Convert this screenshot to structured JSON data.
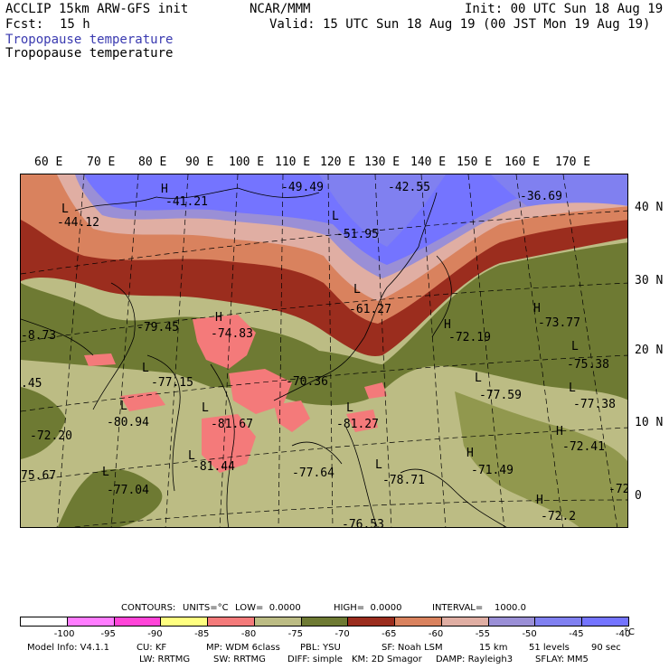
{
  "header": {
    "model": "ACCLIP 15km ARW-GFS init",
    "org": "NCAR/MMM",
    "init": "Init: 00 UTC Sun 18 Aug 19",
    "fcst_label": "Fcst:",
    "fcst_value": "15 h",
    "valid": "Valid: 15 UTC Sun 18 Aug 19 (00 JST Mon 19 Aug 19)",
    "field1": "Tropopause temperature",
    "field2": "Tropopause temperature"
  },
  "map": {
    "lon_labels": [
      "60 E",
      "70 E",
      "80 E",
      "90 E",
      "100 E",
      "110 E",
      "120 E",
      "130 E",
      "140 E",
      "150 E",
      "160 E",
      "170 E"
    ],
    "lat_labels": [
      "40 N",
      "30 N",
      "20 N",
      "10 N",
      "0"
    ],
    "extrema": [
      {
        "mark": "H",
        "value": "-41.21"
      },
      {
        "mark": "L",
        "value": "-44.12"
      },
      {
        "mark": "",
        "value": "-49.49"
      },
      {
        "mark": "",
        "value": "-42.55"
      },
      {
        "mark": "",
        "value": "-36.69"
      },
      {
        "mark": "L",
        "value": "-51.95"
      },
      {
        "mark": "L",
        "value": "-61.27"
      },
      {
        "mark": "H",
        "value": "-73.77"
      },
      {
        "mark": "H",
        "value": "-72.19"
      },
      {
        "mark": "H",
        "value": "-74.83"
      },
      {
        "mark": "",
        "value": "-79.45"
      },
      {
        "mark": "",
        "value": "-8.73"
      },
      {
        "mark": "L",
        "value": "-75.38"
      },
      {
        "mark": "L",
        "value": "-77.15"
      },
      {
        "mark": "",
        "value": "-70.36"
      },
      {
        "mark": "L",
        "value": "-77.59"
      },
      {
        "mark": "L",
        "value": "-77.38"
      },
      {
        "mark": "",
        "value": ".45"
      },
      {
        "mark": "L",
        "value": "-80.94"
      },
      {
        "mark": "L",
        "value": "-81.67"
      },
      {
        "mark": "L",
        "value": "-81.27"
      },
      {
        "mark": "H",
        "value": "-72.41"
      },
      {
        "mark": "",
        "value": "-72.20"
      },
      {
        "mark": "H",
        "value": "-71.49"
      },
      {
        "mark": "L",
        "value": "-81.44"
      },
      {
        "mark": "",
        "value": "-77.64"
      },
      {
        "mark": "L",
        "value": "-78.71"
      },
      {
        "mark": "",
        "value": "75.67"
      },
      {
        "mark": "L",
        "value": "-77.04"
      },
      {
        "mark": "",
        "value": "-72"
      },
      {
        "mark": "H",
        "value": "-72.2"
      },
      {
        "mark": "",
        "value": "-76.53"
      }
    ]
  },
  "contours": {
    "label": "CONTOURS:",
    "units": "UNITS=°C",
    "low": "LOW=  0.0000",
    "high": "HIGH=  0.0000",
    "interval": "INTERVAL=    1000.0"
  },
  "colorbar": {
    "colors": [
      "#ffffff",
      "#ff7cff",
      "#ff44d8",
      "#ffff80",
      "#f47a7a",
      "#bcbc84",
      "#6e7a33",
      "#9b2d1e",
      "#d9825e",
      "#e0aea3",
      "#9a8fd6",
      "#8080f0",
      "#7474ff"
    ],
    "labels": [
      "-100",
      "-95",
      "-90",
      "-85",
      "-80",
      "-75",
      "-70",
      "-65",
      "-60",
      "-55",
      "-50",
      "-45",
      "-40"
    ],
    "unit": "°C"
  },
  "footer": {
    "line1": [
      "Model Info: V4.1.1",
      "CU: KF",
      "MP: WDM 6class",
      "PBL: YSU",
      "SF: Noah LSM",
      "15 km",
      "51 levels",
      "90 sec"
    ],
    "line2": [
      "LW: RRTMG",
      "SW: RRTMG",
      "DIFF: simple",
      "KM: 2D Smagor",
      "DAMP: Rayleigh3",
      "SFLAY: MM5"
    ]
  }
}
